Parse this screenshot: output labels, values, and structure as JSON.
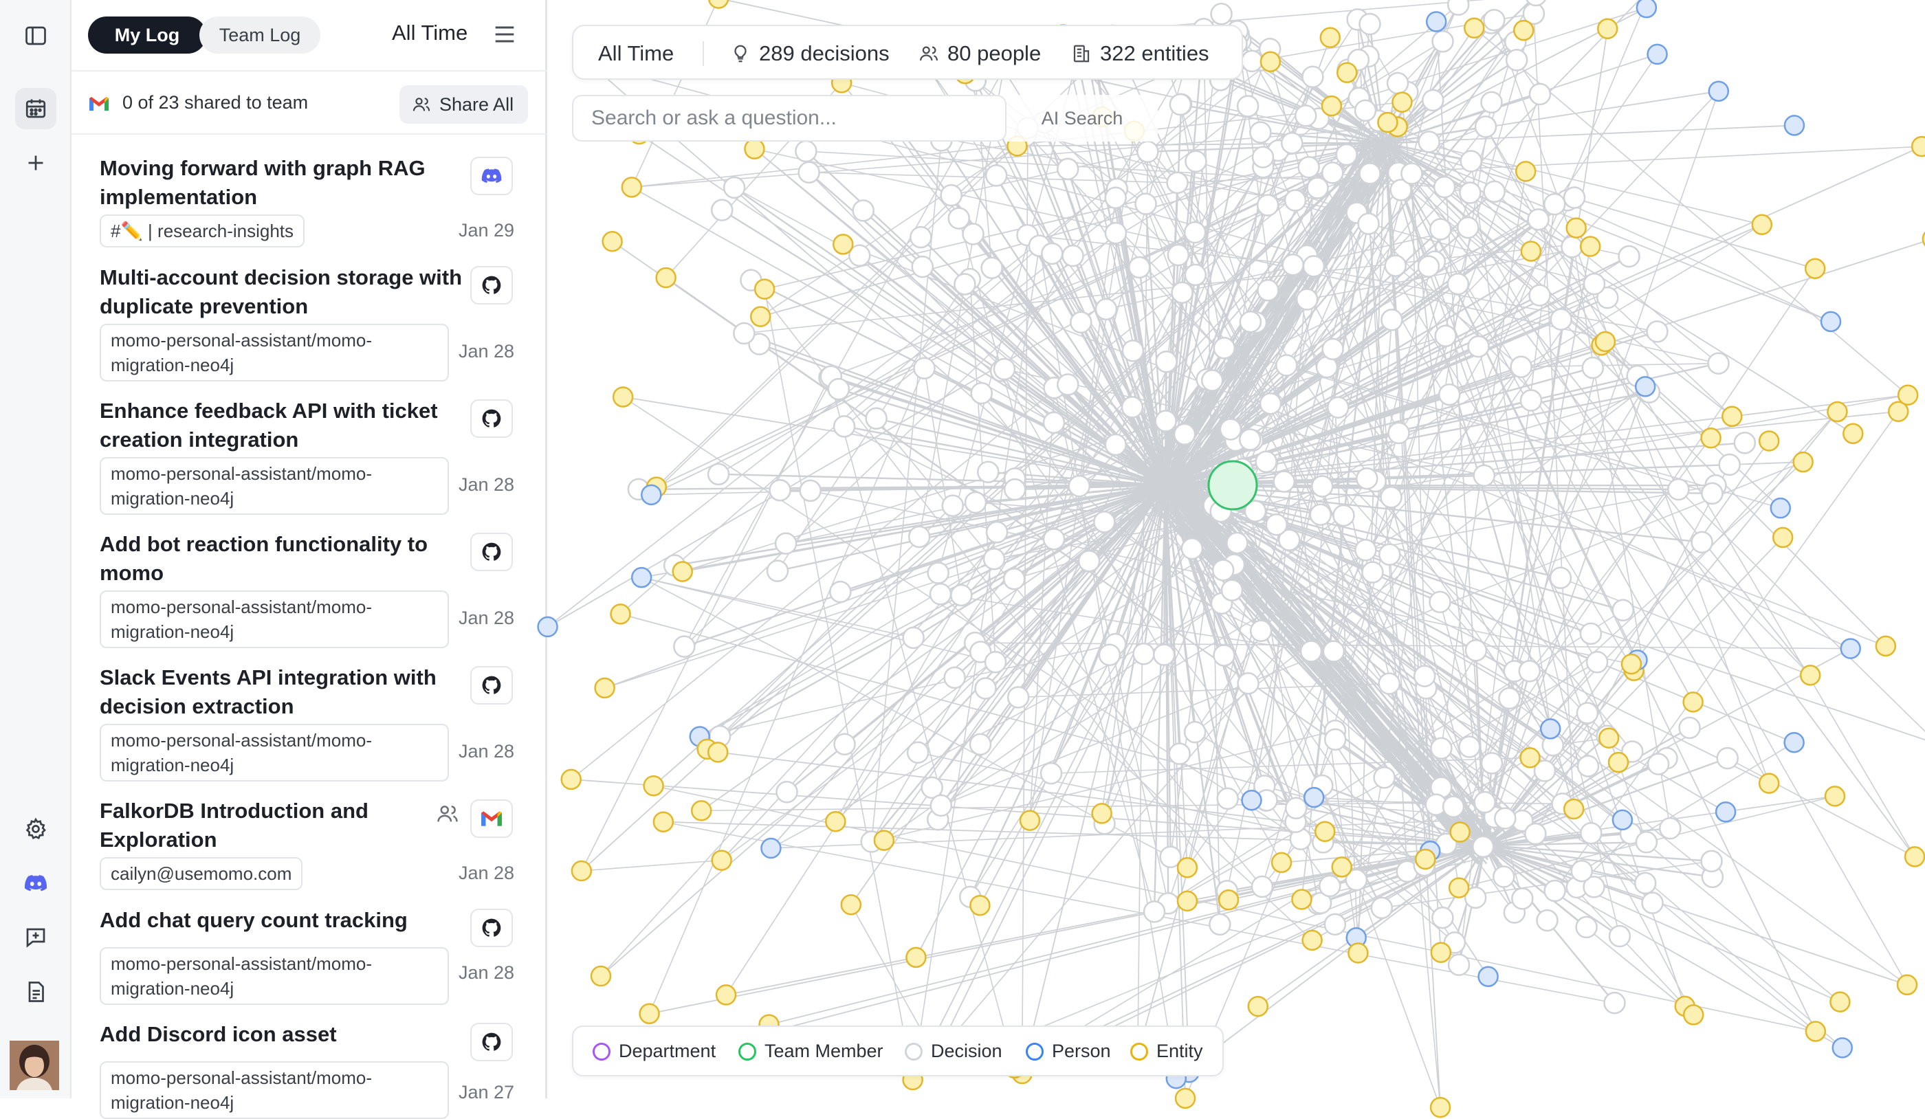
{
  "rail": {
    "items": [
      "sidebar-toggle",
      "calendar",
      "add",
      "settings",
      "discord",
      "feedback",
      "docs"
    ]
  },
  "header": {
    "tabs": [
      {
        "label": "My Log",
        "active": true
      },
      {
        "label": "Team Log",
        "active": false
      }
    ],
    "time_filter": "All Time"
  },
  "share": {
    "status": "0 of 23 shared to team",
    "button_label": "Share All"
  },
  "entries": [
    {
      "title": "Moving forward with graph RAG implementation",
      "tag": "#✏️ | research-insights",
      "date": "Jan 29",
      "source": "discord-icon"
    },
    {
      "title": "Multi-account decision storage with duplicate prevention",
      "tag": "momo-personal-assistant/momo-migration-neo4j",
      "date": "Jan 28",
      "source": "github-icon"
    },
    {
      "title": "Enhance feedback API with ticket creation integration",
      "tag": "momo-personal-assistant/momo-migration-neo4j",
      "date": "Jan 28",
      "source": "github-icon"
    },
    {
      "title": "Add bot reaction functionality to momo",
      "tag": "momo-personal-assistant/momo-migration-neo4j",
      "date": "Jan 28",
      "source": "github-icon"
    },
    {
      "title": "Slack Events API integration with decision extraction",
      "tag": "momo-personal-assistant/momo-migration-neo4j",
      "date": "Jan 28",
      "source": "github-icon"
    },
    {
      "title": "FalkorDB Introduction and Exploration",
      "tag": "cailyn@usemomo.com",
      "date": "Jan 28",
      "source": "gmail-icon",
      "shared": true
    },
    {
      "title": "Add chat query count tracking",
      "tag": "momo-personal-assistant/momo-migration-neo4j",
      "date": "Jan 28",
      "source": "github-icon"
    },
    {
      "title": "Add Discord icon asset",
      "tag": "momo-personal-assistant/momo-migration-neo4j",
      "date": "Jan 27",
      "source": "github-icon"
    }
  ],
  "graph": {
    "time_filter": "All Time",
    "decisions": "289 decisions",
    "people": "80 people",
    "entities": "322 entities",
    "search_placeholder": "Search or ask a question...",
    "ai_search_label": "AI Search",
    "legend": [
      {
        "label": "Department",
        "color": "#a855f7"
      },
      {
        "label": "Team Member",
        "color": "#22c55e"
      },
      {
        "label": "Decision",
        "color": "#d1d5db"
      },
      {
        "label": "Person",
        "color": "#3b82f6"
      },
      {
        "label": "Entity",
        "color": "#eab308"
      }
    ],
    "colors": {
      "edge": "#cdd0d5",
      "decision_fill": "#ffffff",
      "decision_stroke": "#cfd2d7",
      "entity_fill": "#fdf0b3",
      "entity_stroke": "#e2b72a",
      "person_fill": "#dbe8fb",
      "person_stroke": "#6f9fe6",
      "member_fill": "#dcf8e4",
      "member_stroke": "#34c36b"
    }
  }
}
